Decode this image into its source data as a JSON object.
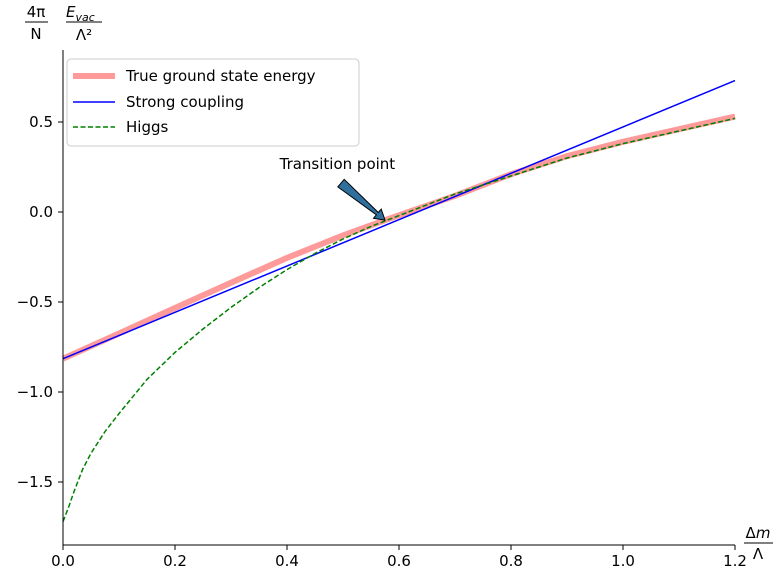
{
  "chart_data": {
    "type": "line",
    "y_axis_label": {
      "left_fraction": {
        "numerator": "4π",
        "denominator": "N"
      },
      "right_fraction": {
        "numerator_main": "E",
        "numerator_sub": "vac",
        "denominator": "Λ²"
      }
    },
    "x_axis_label": {
      "numerator_delta": "Δ",
      "numerator_var": "m",
      "denominator": "Λ"
    },
    "xlim": [
      0.0,
      1.2
    ],
    "ylim": [
      -1.85,
      0.9
    ],
    "x_ticks": [
      {
        "value": 0.0,
        "label": "0.0"
      },
      {
        "value": 0.2,
        "label": "0.2"
      },
      {
        "value": 0.4,
        "label": "0.4"
      },
      {
        "value": 0.6,
        "label": "0.6"
      },
      {
        "value": 0.8,
        "label": "0.8"
      },
      {
        "value": 1.0,
        "label": "1.0"
      },
      {
        "value": 1.2,
        "label": "1.2"
      }
    ],
    "y_ticks": [
      {
        "value": 0.5,
        "label": "0.5"
      },
      {
        "value": 0.0,
        "label": "0.0"
      },
      {
        "value": -0.5,
        "label": "−0.5"
      },
      {
        "value": -1.0,
        "label": "−1.0"
      },
      {
        "value": -1.5,
        "label": "−1.5"
      }
    ],
    "legend": {
      "placement": "upper-left"
    },
    "series": [
      {
        "name": "True ground state energy",
        "color": "#ff9a9a",
        "style": "thick",
        "x": [
          0.0,
          0.1,
          0.2,
          0.3,
          0.4,
          0.5,
          0.58,
          0.7,
          0.8,
          0.9,
          1.0,
          1.1,
          1.2
        ],
        "y": [
          -0.815,
          -0.675,
          -0.533,
          -0.393,
          -0.255,
          -0.13,
          -0.04,
          0.09,
          0.21,
          0.31,
          0.39,
          0.46,
          0.53
        ]
      },
      {
        "name": "Strong coupling",
        "color": "#0000ff",
        "style": "solid",
        "x": [
          0.0,
          1.2
        ],
        "y": [
          -0.815,
          0.73
        ]
      },
      {
        "name": "Higgs",
        "color": "#008000",
        "style": "dashed",
        "x": [
          0.0,
          0.01,
          0.02,
          0.035,
          0.05,
          0.075,
          0.1,
          0.15,
          0.2,
          0.25,
          0.3,
          0.35,
          0.4,
          0.45,
          0.5,
          0.55,
          0.6,
          0.7,
          0.8,
          0.9,
          1.0,
          1.1,
          1.2
        ],
        "y": [
          -1.72,
          -1.64,
          -1.55,
          -1.43,
          -1.34,
          -1.22,
          -1.12,
          -0.93,
          -0.78,
          -0.65,
          -0.53,
          -0.42,
          -0.32,
          -0.23,
          -0.15,
          -0.08,
          -0.02,
          0.1,
          0.2,
          0.3,
          0.38,
          0.45,
          0.52
        ]
      }
    ],
    "annotation": {
      "text": "Transition point",
      "point": [
        0.575,
        -0.045
      ],
      "text_anchor_point": [
        0.49,
        0.24
      ],
      "arrow_color": "#2e6f9e"
    }
  }
}
